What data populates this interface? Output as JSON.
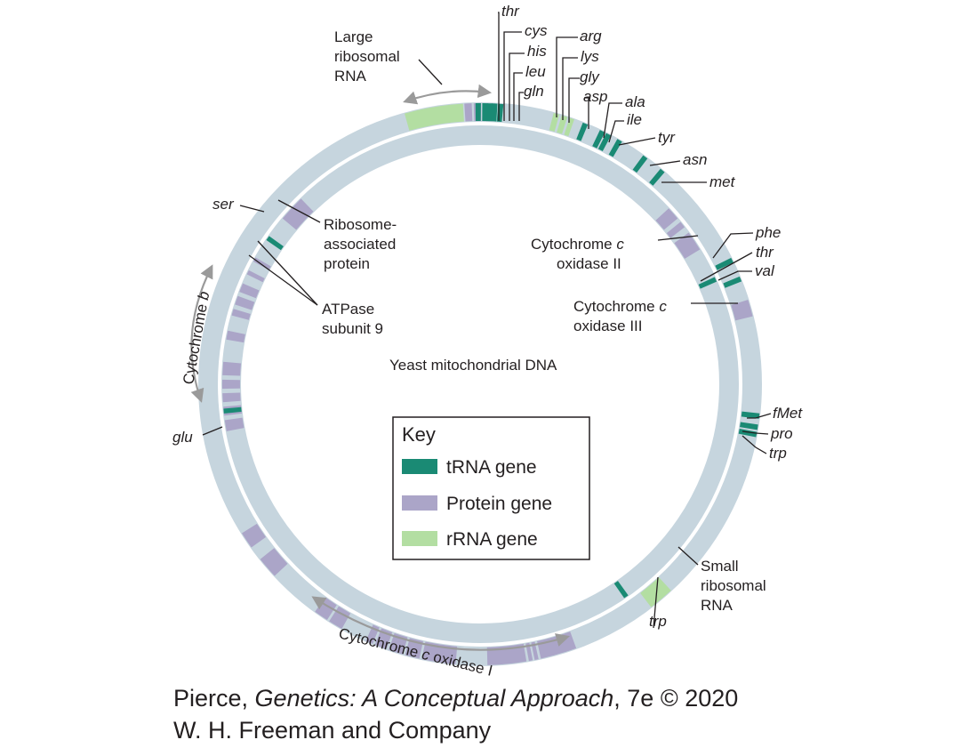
{
  "diagram": {
    "center_title": "Yeast mitochondrial DNA",
    "colors": {
      "track": "#c6d5de",
      "trna": "#1a8a74",
      "protein": "#aba5c8",
      "rrna": "#b3dea2",
      "leader": "#231f20",
      "arrow": "#9a9a9a"
    },
    "trna_labels": [
      "thr",
      "cys",
      "his",
      "leu",
      "gln",
      "arg",
      "lys",
      "gly",
      "asp",
      "ala",
      "ile",
      "tyr",
      "asn",
      "met",
      "phe",
      "thr",
      "val",
      "fMet",
      "pro",
      "trp",
      "trp",
      "glu",
      "ser"
    ],
    "large_rrna": {
      "line1": "Large",
      "line2": "ribosomal",
      "line3": "RNA"
    },
    "small_rrna": {
      "line1": "Small",
      "line2": "ribosomal",
      "line3": "RNA"
    },
    "ribosome_protein": {
      "line1": "Ribosome-",
      "line2": "associated",
      "line3": "protein"
    },
    "atpase": {
      "line1": "ATPase",
      "line2": "subunit 9"
    },
    "cox2": {
      "line1": "Cytochrome",
      "italic_c": "c",
      "line2": "oxidase II"
    },
    "cox3": {
      "line1": "Cytochrome",
      "italic_c": "c",
      "line2": "oxidase III"
    },
    "cytb": {
      "word": "Cytochrome",
      "italic_b": "b"
    },
    "cox1": {
      "word": "Cytochrome",
      "italic_c": "c",
      "rest": "oxidase I"
    }
  },
  "key": {
    "title": "Key",
    "items": [
      {
        "label": "tRNA gene",
        "color": "#1a8a74"
      },
      {
        "label": "Protein gene",
        "color": "#aba5c8"
      },
      {
        "label": "rRNA gene",
        "color": "#b3dea2"
      }
    ]
  },
  "credit": {
    "prefix": "Pierce, ",
    "book": "Genetics: A Conceptual Approach",
    "suffix": ", 7e © 2020",
    "line2": "W. H. Freeman and Company"
  }
}
